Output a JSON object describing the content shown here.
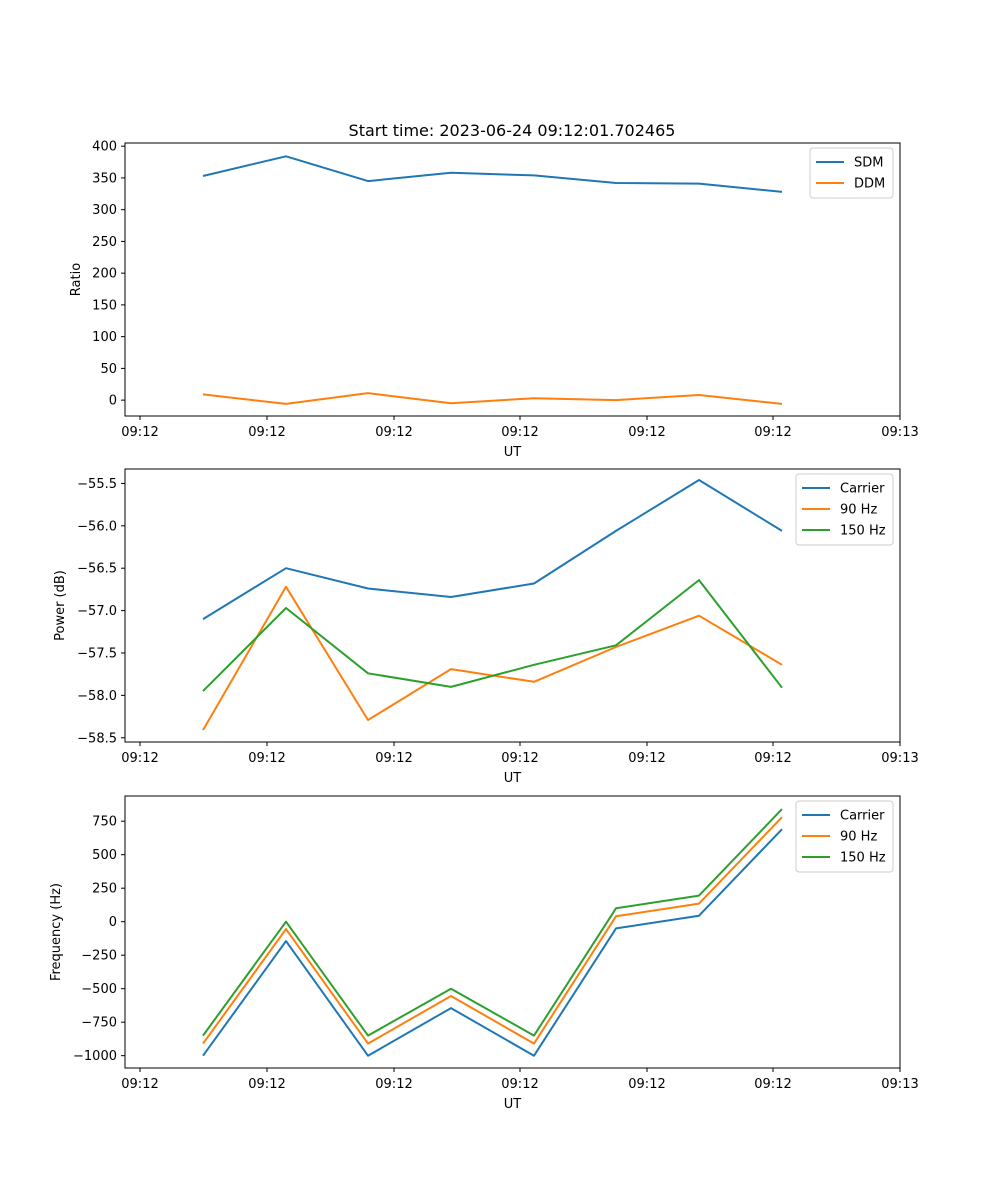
{
  "figure_title": "Start time: 2023-06-24 09:12:01.702465",
  "colors": {
    "blue": "#1f77b4",
    "orange": "#ff7f0e",
    "green": "#2ca02c"
  },
  "chart_data": [
    {
      "type": "line",
      "xlabel": "UT",
      "ylabel": "Ratio",
      "xticklabels": [
        "09:12",
        "09:12",
        "09:12",
        "09:12",
        "09:12",
        "09:12",
        "09:13"
      ],
      "yticks": [
        0,
        50,
        100,
        150,
        200,
        250,
        300,
        350,
        400
      ],
      "ylim": [
        -25,
        405
      ],
      "legend_position": "top-right",
      "x": [
        1,
        2,
        3,
        4,
        5,
        6,
        7,
        8
      ],
      "series": [
        {
          "name": "SDM",
          "color": "#1f77b4",
          "values": [
            353,
            384,
            345,
            358,
            354,
            342,
            341,
            328
          ]
        },
        {
          "name": "DDM",
          "color": "#ff7f0e",
          "values": [
            9,
            -6,
            11,
            -5,
            3,
            0,
            8,
            -6
          ]
        }
      ]
    },
    {
      "type": "line",
      "xlabel": "UT",
      "ylabel": "Power (dB)",
      "xticklabels": [
        "09:12",
        "09:12",
        "09:12",
        "09:12",
        "09:12",
        "09:12",
        "09:13"
      ],
      "yticks": [
        -58.5,
        -58.0,
        -57.5,
        -57.0,
        -56.5,
        -56.0,
        -55.5
      ],
      "ylim": [
        -58.55,
        -55.33
      ],
      "legend_position": "top-right",
      "x": [
        1,
        2,
        3,
        4,
        5,
        6,
        7,
        8
      ],
      "series": [
        {
          "name": "Carrier",
          "color": "#1f77b4",
          "values": [
            -57.1,
            -56.5,
            -56.74,
            -56.84,
            -56.68,
            -56.06,
            -55.46,
            -56.06
          ]
        },
        {
          "name": "90 Hz",
          "color": "#ff7f0e",
          "values": [
            -58.41,
            -56.72,
            -58.29,
            -57.69,
            -57.84,
            -57.43,
            -57.06,
            -57.64
          ]
        },
        {
          "name": "150 Hz",
          "color": "#2ca02c",
          "values": [
            -57.95,
            -56.97,
            -57.74,
            -57.9,
            -57.64,
            -57.41,
            -56.64,
            -57.91
          ]
        }
      ]
    },
    {
      "type": "line",
      "xlabel": "UT",
      "ylabel": "Frequency (Hz)",
      "xticklabels": [
        "09:12",
        "09:12",
        "09:12",
        "09:12",
        "09:12",
        "09:12",
        "09:13"
      ],
      "yticks": [
        -1000,
        -750,
        -500,
        -250,
        0,
        250,
        500,
        750
      ],
      "ylim": [
        -1092,
        938
      ],
      "legend_position": "top-right",
      "x": [
        1,
        2,
        3,
        4,
        5,
        6,
        7,
        8
      ],
      "series": [
        {
          "name": "Carrier",
          "color": "#1f77b4",
          "values": [
            -1000,
            -145,
            -1000,
            -645,
            -1000,
            -50,
            45,
            690
          ]
        },
        {
          "name": "90 Hz",
          "color": "#ff7f0e",
          "values": [
            -910,
            -55,
            -910,
            -555,
            -910,
            40,
            135,
            780
          ]
        },
        {
          "name": "150 Hz",
          "color": "#2ca02c",
          "values": [
            -850,
            0,
            -850,
            -500,
            -850,
            100,
            195,
            840
          ]
        }
      ]
    }
  ]
}
